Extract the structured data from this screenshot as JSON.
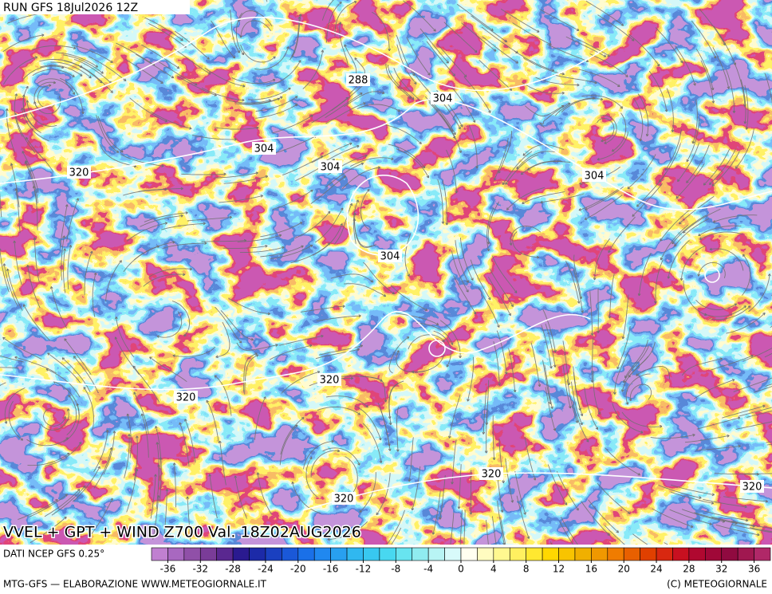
{
  "run_label": "RUN GFS 18Jul2026 12Z",
  "map_title": "VVEL + GPT + WIND Z700 Val. 18Z02AUG2026",
  "contour_labels": [
    "288",
    "304",
    "304",
    "304",
    "304",
    "304",
    "320",
    "320",
    "320",
    "320",
    "320",
    "320"
  ],
  "source_label": "DATI NCEP GFS 0.25°",
  "colorbar": {
    "lim": [
      -38,
      38
    ],
    "ticks": [
      -36,
      -32,
      -28,
      -24,
      -20,
      -16,
      -12,
      -8,
      -4,
      0,
      4,
      8,
      12,
      16,
      20,
      24,
      28,
      32,
      36
    ],
    "colors": [
      "#c080d0",
      "#a868c0",
      "#9050a8",
      "#7a3c98",
      "#5a2890",
      "#2a1a90",
      "#1c2aa8",
      "#1a40c0",
      "#1a58d8",
      "#1a70e8",
      "#2088f0",
      "#28a0f0",
      "#30b8f0",
      "#38c8f0",
      "#48d8f0",
      "#68e4f0",
      "#90ecf0",
      "#b8f4f4",
      "#d8fafa",
      "#fffff0",
      "#fffcc0",
      "#fff890",
      "#fff060",
      "#ffe830",
      "#ffd800",
      "#f8c400",
      "#f0b000",
      "#f09800",
      "#f07c00",
      "#e86000",
      "#e04000",
      "#d82810",
      "#c81020",
      "#b00830",
      "#a00838",
      "#900a40",
      "#a01850",
      "#b02868"
    ]
  },
  "footer_left": "MTG-GFS — ELABORAZIONE WWW.METEOGIORNALE.IT",
  "footer_right": "(C) METEOGIORNALE"
}
